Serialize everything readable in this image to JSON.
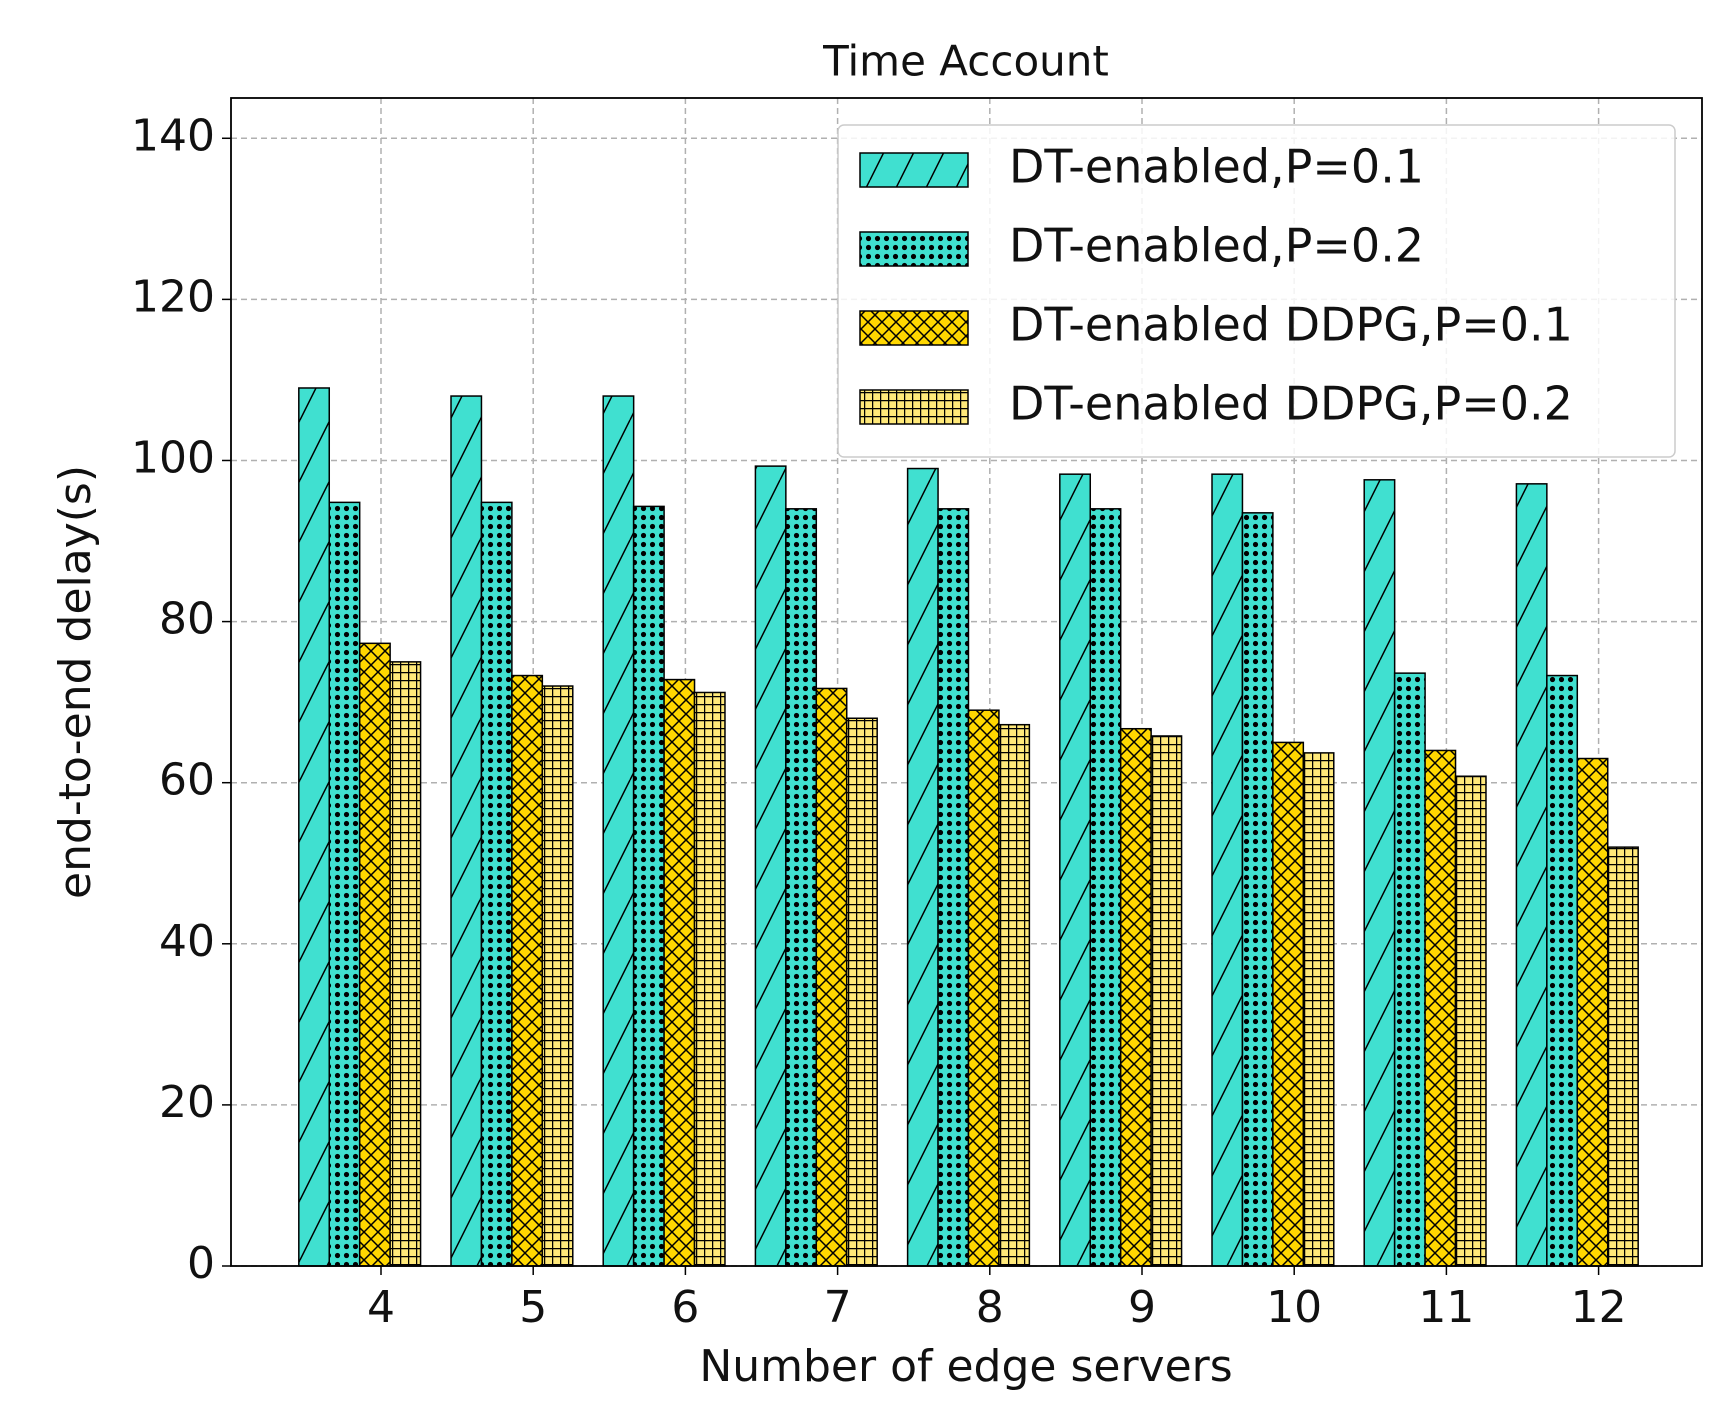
{
  "chart_data": {
    "type": "bar",
    "title": "Time Account",
    "x_label": "Number of edge servers",
    "y_label": "end-to-end delay(s)",
    "categories": [
      "4",
      "5",
      "6",
      "7",
      "8",
      "9",
      "10",
      "11",
      "12"
    ],
    "series": [
      {
        "name": "DT-enabled,P=0.1",
        "color": "#40e0d0",
        "hatch": "/",
        "values": [
          109,
          108,
          108,
          99.3,
          99,
          98.3,
          98.3,
          97.6,
          97.1
        ]
      },
      {
        "name": "DT-enabled,P=0.2",
        "color": "#40e0d0",
        "hatch": "o",
        "values": [
          94.8,
          94.8,
          94.3,
          94,
          94,
          94,
          93.5,
          73.6,
          73.3
        ]
      },
      {
        "name": "DT-enabled DDPG,P=0.1",
        "color": "#ffd700",
        "hatch": "x",
        "values": [
          77.3,
          73.3,
          72.8,
          71.7,
          69,
          66.7,
          65,
          64,
          63
        ]
      },
      {
        "name": "DT-enabled DDPG,P=0.2",
        "color": "#ffe97a",
        "hatch": "+",
        "values": [
          75,
          72,
          71.2,
          68,
          67.2,
          65.8,
          63.7,
          60.8,
          52
        ]
      }
    ],
    "ylim": [
      0,
      145
    ],
    "yticks": [
      0,
      20,
      40,
      60,
      80,
      100,
      120,
      140
    ],
    "grid": true,
    "legend": "upper right"
  }
}
